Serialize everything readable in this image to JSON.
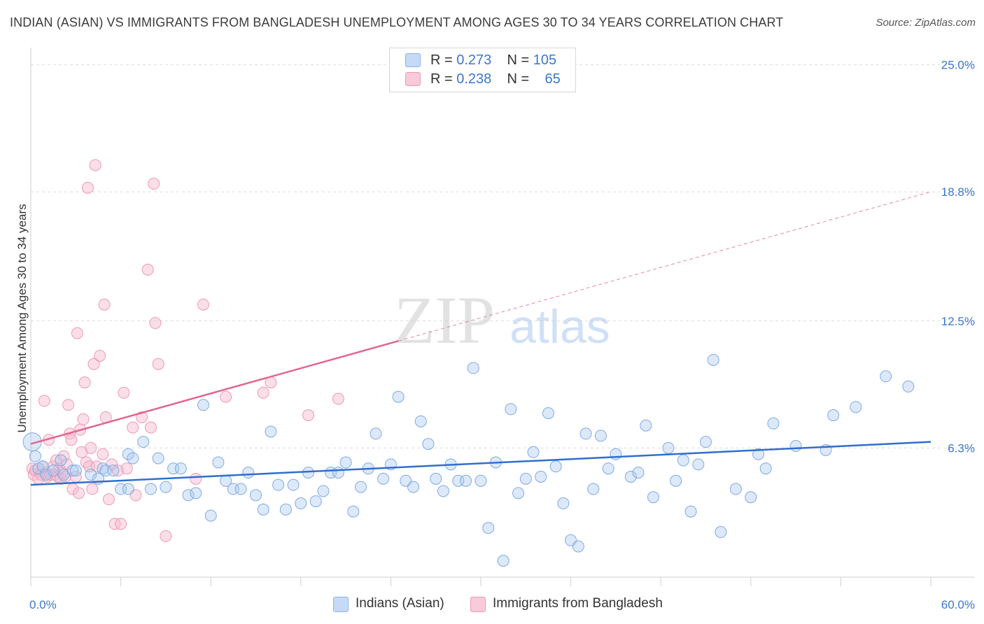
{
  "title": "INDIAN (ASIAN) VS IMMIGRANTS FROM BANGLADESH UNEMPLOYMENT AMONG AGES 30 TO 34 YEARS CORRELATION CHART",
  "source": "Source: ZipAtlas.com",
  "watermark": {
    "zip": "ZIP",
    "atlas": "atlas"
  },
  "legend_top": [
    {
      "r_label": "R = ",
      "r_value": "0.273",
      "n_label": "N = ",
      "n_value": "105",
      "color": "#aac8f0"
    },
    {
      "r_label": "R = ",
      "r_value": "0.238",
      "n_label": "N = ",
      "n_value": "65",
      "color": "#f7b8cc"
    }
  ],
  "legend_bottom": [
    {
      "label": "Indians (Asian)",
      "color": "#aac8f0"
    },
    {
      "label": "Immigrants from Bangladesh",
      "color": "#f7b8cc"
    }
  ],
  "colors": {
    "blue_line": "#2f6fcc",
    "pink_line": "#e0678f",
    "blue_fill": "#aac8f0",
    "pink_fill": "#f7b8cc",
    "tick_label": "#3b78c9"
  },
  "chart_data": {
    "type": "scatter",
    "title": "INDIAN (ASIAN) VS IMMIGRANTS FROM BANGLADESH UNEMPLOYMENT AMONG AGES 30 TO 34 YEARS CORRELATION CHART",
    "xlabel": "",
    "ylabel": "Unemployment Among Ages 30 to 34 years",
    "xlim": [
      0,
      60
    ],
    "ylim": [
      0,
      25.6
    ],
    "x_tick_labels": [
      "0.0%",
      "60.0%"
    ],
    "y_ticks": [
      6.3,
      12.5,
      18.8,
      25.0
    ],
    "y_tick_labels": [
      "6.3%",
      "12.5%",
      "18.8%",
      "25.0%"
    ],
    "grid": "horizontal dashed",
    "legend_position": "top-center",
    "series": [
      {
        "name": "Indians (Asian)",
        "color": "#aac8f0",
        "trend": {
          "x": [
            0,
            60
          ],
          "y": [
            4.5,
            6.6
          ],
          "style": "solid"
        },
        "points": [
          [
            0.1,
            6.6
          ],
          [
            0.3,
            5.9
          ],
          [
            0.5,
            5.3
          ],
          [
            0.8,
            5.4
          ],
          [
            1.0,
            5.0
          ],
          [
            1.5,
            5.2
          ],
          [
            2.0,
            5.7
          ],
          [
            2.2,
            5.0
          ],
          [
            2.8,
            5.2
          ],
          [
            3.0,
            5.2
          ],
          [
            4.0,
            5.0
          ],
          [
            4.5,
            4.8
          ],
          [
            4.8,
            5.3
          ],
          [
            5.0,
            5.2
          ],
          [
            5.5,
            5.2
          ],
          [
            6.0,
            4.3
          ],
          [
            6.5,
            4.3
          ],
          [
            6.5,
            6.0
          ],
          [
            6.8,
            5.8
          ],
          [
            7.5,
            6.6
          ],
          [
            8.0,
            4.3
          ],
          [
            8.5,
            5.8
          ],
          [
            9.0,
            4.4
          ],
          [
            9.5,
            5.3
          ],
          [
            10.0,
            5.3
          ],
          [
            10.5,
            4.0
          ],
          [
            11.0,
            4.1
          ],
          [
            11.5,
            8.4
          ],
          [
            12.0,
            3.0
          ],
          [
            12.5,
            5.6
          ],
          [
            13.0,
            4.7
          ],
          [
            13.5,
            4.3
          ],
          [
            14.0,
            4.3
          ],
          [
            14.5,
            5.1
          ],
          [
            15.0,
            4.0
          ],
          [
            15.5,
            3.3
          ],
          [
            16.0,
            7.1
          ],
          [
            16.5,
            4.5
          ],
          [
            17.0,
            3.3
          ],
          [
            17.5,
            4.5
          ],
          [
            18.0,
            3.6
          ],
          [
            18.5,
            5.1
          ],
          [
            19.0,
            3.7
          ],
          [
            19.5,
            4.2
          ],
          [
            20.0,
            5.1
          ],
          [
            20.5,
            5.1
          ],
          [
            21.0,
            5.6
          ],
          [
            21.5,
            3.2
          ],
          [
            22.0,
            4.4
          ],
          [
            22.5,
            5.3
          ],
          [
            23.0,
            7.0
          ],
          [
            23.5,
            4.8
          ],
          [
            24.0,
            5.5
          ],
          [
            24.5,
            8.8
          ],
          [
            25.0,
            4.7
          ],
          [
            25.5,
            4.4
          ],
          [
            26.0,
            7.6
          ],
          [
            26.5,
            6.5
          ],
          [
            27.0,
            4.8
          ],
          [
            27.5,
            4.2
          ],
          [
            28.0,
            5.5
          ],
          [
            28.5,
            4.7
          ],
          [
            29.0,
            4.7
          ],
          [
            29.5,
            10.2
          ],
          [
            30.0,
            4.7
          ],
          [
            30.5,
            2.4
          ],
          [
            31.0,
            5.6
          ],
          [
            31.5,
            0.8
          ],
          [
            32.0,
            8.2
          ],
          [
            32.5,
            4.1
          ],
          [
            33.0,
            4.8
          ],
          [
            33.5,
            6.1
          ],
          [
            34.0,
            4.9
          ],
          [
            34.5,
            8.0
          ],
          [
            35.0,
            5.4
          ],
          [
            35.5,
            3.6
          ],
          [
            36.0,
            1.8
          ],
          [
            36.5,
            1.5
          ],
          [
            37.0,
            7.0
          ],
          [
            37.5,
            4.3
          ],
          [
            38.0,
            6.9
          ],
          [
            38.5,
            5.3
          ],
          [
            39.0,
            6.0
          ],
          [
            40.0,
            4.9
          ],
          [
            40.5,
            5.1
          ],
          [
            41.0,
            7.4
          ],
          [
            41.5,
            3.9
          ],
          [
            42.5,
            6.3
          ],
          [
            43.0,
            4.7
          ],
          [
            43.5,
            5.7
          ],
          [
            44.0,
            3.2
          ],
          [
            44.5,
            5.5
          ],
          [
            45.0,
            6.6
          ],
          [
            45.5,
            10.6
          ],
          [
            46.0,
            2.2
          ],
          [
            47.0,
            4.3
          ],
          [
            48.0,
            3.9
          ],
          [
            48.5,
            6.0
          ],
          [
            49.0,
            5.3
          ],
          [
            49.5,
            7.5
          ],
          [
            51.0,
            6.4
          ],
          [
            53.0,
            6.2
          ],
          [
            53.5,
            7.9
          ],
          [
            55.0,
            8.3
          ],
          [
            57.0,
            9.8
          ],
          [
            58.5,
            9.3
          ]
        ]
      },
      {
        "name": "Immigrants from Bangladesh",
        "color": "#f7b8cc",
        "trend": {
          "x": [
            0,
            60
          ],
          "y": [
            6.5,
            18.8
          ],
          "solid_until_x": 24.5,
          "style": "solid-then-dashed"
        },
        "points": [
          [
            0.1,
            5.3
          ],
          [
            0.2,
            5.0
          ],
          [
            0.3,
            5.2
          ],
          [
            0.5,
            4.8
          ],
          [
            0.7,
            5.0
          ],
          [
            0.8,
            5.4
          ],
          [
            0.9,
            8.6
          ],
          [
            1.0,
            5.1
          ],
          [
            1.1,
            4.9
          ],
          [
            1.2,
            6.7
          ],
          [
            1.3,
            5.0
          ],
          [
            1.5,
            5.4
          ],
          [
            1.6,
            5.0
          ],
          [
            1.7,
            5.7
          ],
          [
            1.8,
            4.9
          ],
          [
            1.9,
            5.3
          ],
          [
            2.0,
            4.8
          ],
          [
            2.1,
            5.1
          ],
          [
            2.2,
            5.9
          ],
          [
            2.3,
            4.9
          ],
          [
            2.4,
            5.5
          ],
          [
            2.5,
            8.4
          ],
          [
            2.6,
            7.0
          ],
          [
            2.7,
            6.7
          ],
          [
            2.8,
            4.3
          ],
          [
            3.0,
            4.9
          ],
          [
            3.1,
            11.9
          ],
          [
            3.2,
            4.1
          ],
          [
            3.3,
            7.2
          ],
          [
            3.4,
            6.1
          ],
          [
            3.5,
            7.7
          ],
          [
            3.6,
            9.5
          ],
          [
            3.7,
            5.6
          ],
          [
            3.8,
            19.0
          ],
          [
            3.9,
            5.4
          ],
          [
            4.0,
            6.3
          ],
          [
            4.1,
            4.3
          ],
          [
            4.2,
            10.4
          ],
          [
            4.3,
            20.1
          ],
          [
            4.4,
            5.4
          ],
          [
            4.6,
            10.8
          ],
          [
            4.8,
            6.0
          ],
          [
            4.9,
            13.3
          ],
          [
            5.0,
            7.8
          ],
          [
            5.2,
            3.8
          ],
          [
            5.4,
            5.5
          ],
          [
            5.6,
            2.6
          ],
          [
            5.8,
            5.2
          ],
          [
            6.0,
            2.6
          ],
          [
            6.2,
            9.0
          ],
          [
            6.4,
            5.3
          ],
          [
            6.8,
            7.3
          ],
          [
            7.0,
            4.0
          ],
          [
            7.4,
            7.8
          ],
          [
            7.8,
            15.0
          ],
          [
            8.0,
            7.3
          ],
          [
            8.2,
            19.2
          ],
          [
            8.3,
            12.4
          ],
          [
            8.5,
            10.4
          ],
          [
            9.0,
            2.0
          ],
          [
            11.0,
            4.8
          ],
          [
            11.5,
            13.3
          ],
          [
            13.0,
            8.8
          ],
          [
            15.5,
            9.0
          ],
          [
            16.0,
            9.5
          ],
          [
            18.5,
            7.9
          ],
          [
            20.5,
            8.7
          ]
        ]
      }
    ]
  }
}
